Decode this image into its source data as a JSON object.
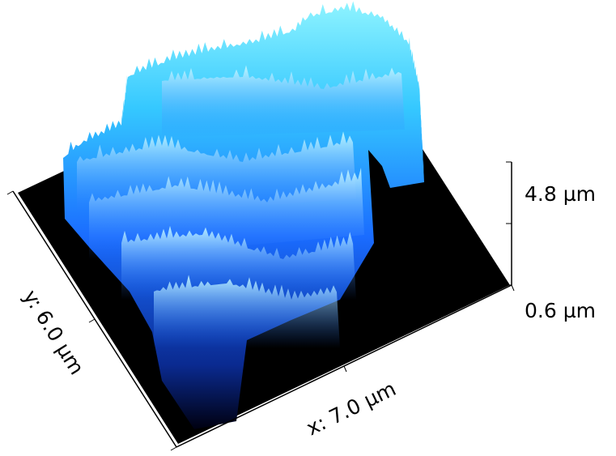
{
  "z_axis": {
    "top_label": "4.8 µm",
    "bottom_label": "0.6 µm"
  },
  "y_axis": {
    "label": "y: 6.0 µm"
  },
  "x_axis": {
    "label": "x: 7.0 µm"
  }
}
